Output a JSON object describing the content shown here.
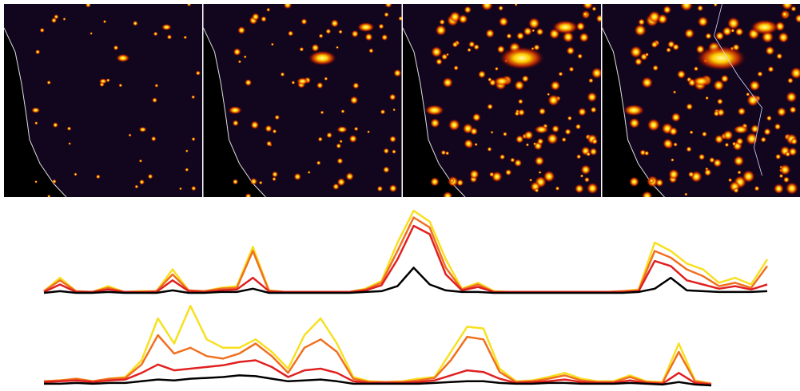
{
  "chart_data": [
    {
      "type": "line",
      "ylim": [
        0,
        100
      ],
      "series": [
        {
          "color": "#f8e020",
          "values": [
            2,
            18,
            2,
            1,
            8,
            1,
            2,
            2,
            28,
            3,
            2,
            6,
            8,
            55,
            3,
            1,
            1,
            1,
            1,
            1,
            5,
            14,
            60,
            98,
            85,
            40,
            5,
            12,
            2,
            1,
            1,
            1,
            1,
            1,
            1,
            1,
            2,
            4,
            60,
            50,
            35,
            28,
            12,
            18,
            10,
            40
          ]
        },
        {
          "color": "#f07020",
          "values": [
            2,
            15,
            2,
            1,
            6,
            1,
            1,
            2,
            22,
            3,
            2,
            5,
            6,
            50,
            2,
            1,
            1,
            1,
            1,
            1,
            4,
            12,
            50,
            90,
            78,
            30,
            4,
            10,
            1,
            1,
            1,
            1,
            1,
            1,
            1,
            1,
            2,
            3,
            50,
            42,
            28,
            20,
            8,
            12,
            6,
            32
          ]
        },
        {
          "color": "#e02020",
          "values": [
            1,
            10,
            1,
            1,
            4,
            1,
            1,
            1,
            15,
            2,
            1,
            3,
            4,
            18,
            2,
            1,
            1,
            1,
            1,
            1,
            3,
            9,
            40,
            80,
            70,
            22,
            3,
            7,
            1,
            1,
            1,
            1,
            1,
            1,
            1,
            1,
            1,
            2,
            38,
            32,
            15,
            10,
            5,
            8,
            4,
            10
          ]
        },
        {
          "color": "#000000",
          "values": [
            0,
            2,
            0,
            0,
            1,
            0,
            0,
            0,
            3,
            0,
            0,
            1,
            1,
            5,
            0,
            0,
            0,
            0,
            0,
            0,
            1,
            2,
            8,
            30,
            10,
            3,
            1,
            1,
            0,
            0,
            0,
            0,
            0,
            0,
            0,
            0,
            0,
            1,
            5,
            18,
            3,
            2,
            1,
            1,
            1,
            2
          ]
        }
      ]
    },
    {
      "type": "line",
      "ylim": [
        0,
        100
      ],
      "series": [
        {
          "color": "#f8e020",
          "values": [
            5,
            6,
            8,
            5,
            8,
            10,
            30,
            80,
            50,
            95,
            55,
            45,
            45,
            55,
            40,
            20,
            60,
            80,
            50,
            10,
            5,
            4,
            5,
            8,
            10,
            40,
            70,
            68,
            20,
            5,
            6,
            10,
            15,
            8,
            5,
            5,
            12,
            5,
            4,
            50,
            6,
            2
          ]
        },
        {
          "color": "#f07020",
          "values": [
            5,
            6,
            8,
            5,
            8,
            9,
            25,
            60,
            38,
            45,
            35,
            32,
            38,
            50,
            35,
            15,
            45,
            55,
            40,
            8,
            4,
            4,
            4,
            6,
            9,
            30,
            58,
            55,
            16,
            4,
            5,
            8,
            12,
            6,
            4,
            4,
            10,
            4,
            3,
            40,
            5,
            2
          ]
        },
        {
          "color": "#e02020",
          "values": [
            4,
            5,
            6,
            4,
            6,
            7,
            15,
            25,
            18,
            20,
            22,
            24,
            28,
            30,
            22,
            10,
            18,
            20,
            15,
            5,
            3,
            3,
            3,
            4,
            6,
            12,
            18,
            16,
            8,
            3,
            4,
            5,
            7,
            4,
            3,
            3,
            6,
            3,
            2,
            15,
            3,
            1
          ]
        },
        {
          "color": "#000000",
          "values": [
            2,
            2,
            3,
            2,
            3,
            3,
            5,
            7,
            6,
            8,
            9,
            10,
            12,
            11,
            8,
            5,
            6,
            7,
            5,
            2,
            2,
            2,
            2,
            2,
            3,
            4,
            5,
            5,
            3,
            2,
            2,
            3,
            3,
            2,
            2,
            2,
            3,
            2,
            1,
            4,
            1,
            0
          ]
        }
      ]
    }
  ]
}
